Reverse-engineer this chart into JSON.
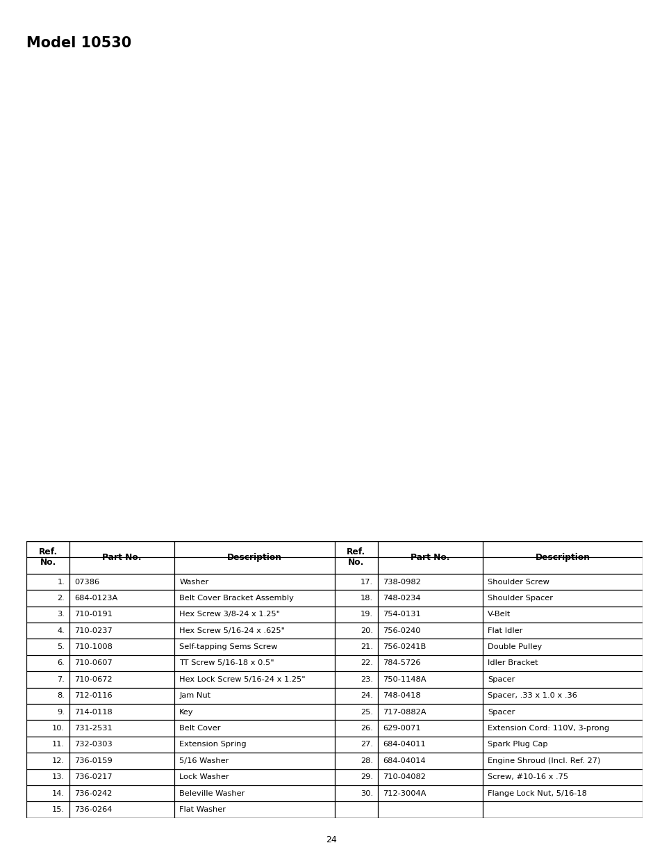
{
  "title": "Model 10530",
  "page_number": "24",
  "background_color": "#ffffff",
  "title_fontsize": 15,
  "title_font_weight": "bold",
  "parts_left": [
    [
      "1.",
      "07386",
      "Washer"
    ],
    [
      "2.",
      "684-0123A",
      "Belt Cover Bracket Assembly"
    ],
    [
      "3.",
      "710-0191",
      "Hex Screw 3/8-24 x 1.25\""
    ],
    [
      "4.",
      "710-0237",
      "Hex Screw 5/16-24 x .625\""
    ],
    [
      "5.",
      "710-1008",
      "Self-tapping Sems Screw"
    ],
    [
      "6.",
      "710-0607",
      "TT Screw 5/16-18 x 0.5\""
    ],
    [
      "7.",
      "710-0672",
      "Hex Lock Screw 5/16-24 x 1.25\""
    ],
    [
      "8.",
      "712-0116",
      "Jam Nut"
    ],
    [
      "9.",
      "714-0118",
      "Key"
    ],
    [
      "10.",
      "731-2531",
      "Belt Cover"
    ],
    [
      "11.",
      "732-0303",
      "Extension Spring"
    ],
    [
      "12.",
      "736-0159",
      "5/16 Washer"
    ],
    [
      "13.",
      "736-0217",
      "Lock Washer"
    ],
    [
      "14.",
      "736-0242",
      "Beleville Washer"
    ],
    [
      "15.",
      "736-0264",
      "Flat Washer"
    ]
  ],
  "parts_right": [
    [
      "17.",
      "738-0982",
      "Shoulder Screw"
    ],
    [
      "18.",
      "748-0234",
      "Shoulder Spacer"
    ],
    [
      "19.",
      "754-0131",
      "V-Belt"
    ],
    [
      "20.",
      "756-0240",
      "Flat Idler"
    ],
    [
      "21.",
      "756-0241B",
      "Double Pulley"
    ],
    [
      "22.",
      "784-5726",
      "Idler Bracket"
    ],
    [
      "23.",
      "750-1148A",
      "Spacer"
    ],
    [
      "24.",
      "748-0418",
      "Spacer, .33 x 1.0 x .36"
    ],
    [
      "25.",
      "717-0882A",
      "Spacer"
    ],
    [
      "26.",
      "629-0071",
      "Extension Cord: 110V, 3-prong"
    ],
    [
      "27.",
      "684-04011",
      "Spark Plug Cap"
    ],
    [
      "28.",
      "684-04014",
      "Engine Shroud (Incl. Ref. 27)"
    ],
    [
      "29.",
      "710-04082",
      "Screw, #10-16 x .75"
    ],
    [
      "30.",
      "712-3004A",
      "Flange Lock Nut, 5/16-18"
    ],
    [
      "",
      "",
      ""
    ]
  ],
  "table_font_size": 8.2,
  "header_font_size": 8.8,
  "header_font_weight": "bold",
  "line_color": "#000000",
  "table_lw": 0.9
}
